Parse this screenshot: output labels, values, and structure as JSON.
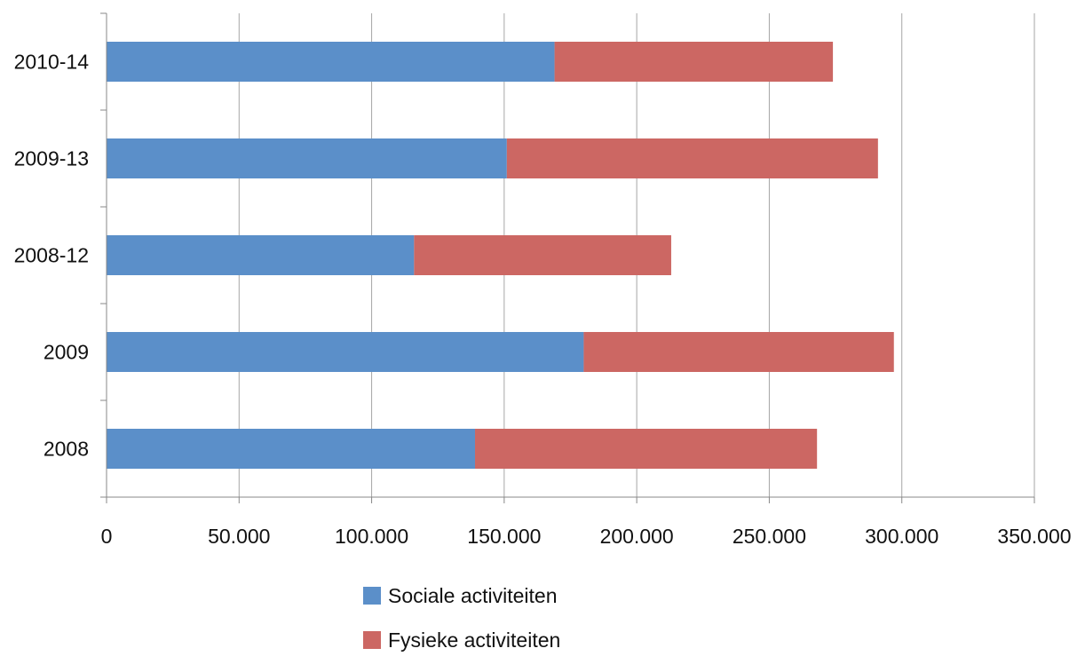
{
  "chart_data": {
    "type": "bar",
    "orientation": "horizontal",
    "stacked": true,
    "categories": [
      "2008",
      "2009",
      "2008-12",
      "2009-13",
      "2010-14"
    ],
    "series": [
      {
        "name": "Sociale activiteiten",
        "color": "#5B8FC9",
        "values": [
          139000,
          180000,
          116000,
          151000,
          169000
        ]
      },
      {
        "name": "Fysieke activiteiten",
        "color": "#CC6763",
        "values": [
          129000,
          117000,
          97000,
          140000,
          105000
        ]
      }
    ],
    "x_ticks": [
      "0",
      "50.000",
      "100.000",
      "150.000",
      "200.000",
      "250.000",
      "300.000",
      "350.000"
    ],
    "xlim": [
      0,
      350000
    ],
    "grid": "vertical",
    "legend_position": "bottom"
  }
}
